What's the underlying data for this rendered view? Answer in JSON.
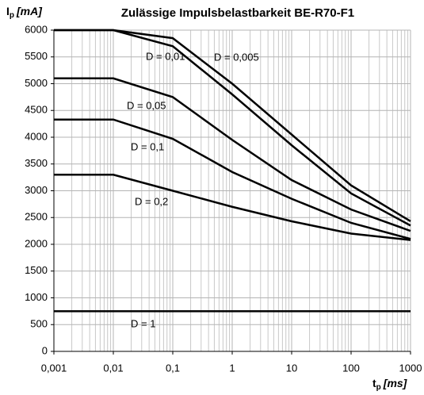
{
  "chart_data": {
    "type": "line",
    "title": "Zulässige Impulsbelastbarkeit BE-R70-F1",
    "ylabel": {
      "symbol": "I",
      "sub": "p",
      "unit": "[mA]"
    },
    "xlabel": {
      "symbol": "t",
      "sub": "p",
      "unit": "[ms]"
    },
    "x": [
      0.001,
      0.01,
      0.1,
      1,
      10,
      100,
      1000
    ],
    "xlog": true,
    "xlim": [
      0.001,
      1000
    ],
    "xticks": [
      {
        "value": 0.001,
        "label": "0,001"
      },
      {
        "value": 0.01,
        "label": "0,01"
      },
      {
        "value": 0.1,
        "label": "0,1"
      },
      1,
      10,
      100,
      1000
    ],
    "ylim": [
      0,
      6000
    ],
    "yticks": [
      0,
      500,
      1000,
      1500,
      2000,
      2500,
      3000,
      3500,
      4000,
      4500,
      5000,
      5500,
      6000
    ],
    "grid": true,
    "minor_grid": true,
    "series": [
      {
        "name": "D = 0,005",
        "color": "#000000",
        "values": [
          6000,
          6000,
          5850,
          5000,
          4050,
          3100,
          2430
        ]
      },
      {
        "name": "D = 0,01",
        "color": "#000000",
        "values": [
          6000,
          6000,
          5700,
          4800,
          3850,
          2950,
          2350
        ]
      },
      {
        "name": "D = 0,05",
        "color": "#000000",
        "values": [
          5100,
          5100,
          4750,
          3950,
          3200,
          2650,
          2250
        ]
      },
      {
        "name": "D = 0,1",
        "color": "#000000",
        "values": [
          4330,
          4330,
          3970,
          3350,
          2850,
          2400,
          2100
        ]
      },
      {
        "name": "D = 0,2",
        "color": "#000000",
        "values": [
          3300,
          3300,
          3000,
          2700,
          2430,
          2200,
          2080
        ]
      },
      {
        "name": "D = 1",
        "color": "#000000",
        "values": [
          750,
          750,
          750,
          750,
          750,
          750,
          750
        ]
      }
    ]
  }
}
